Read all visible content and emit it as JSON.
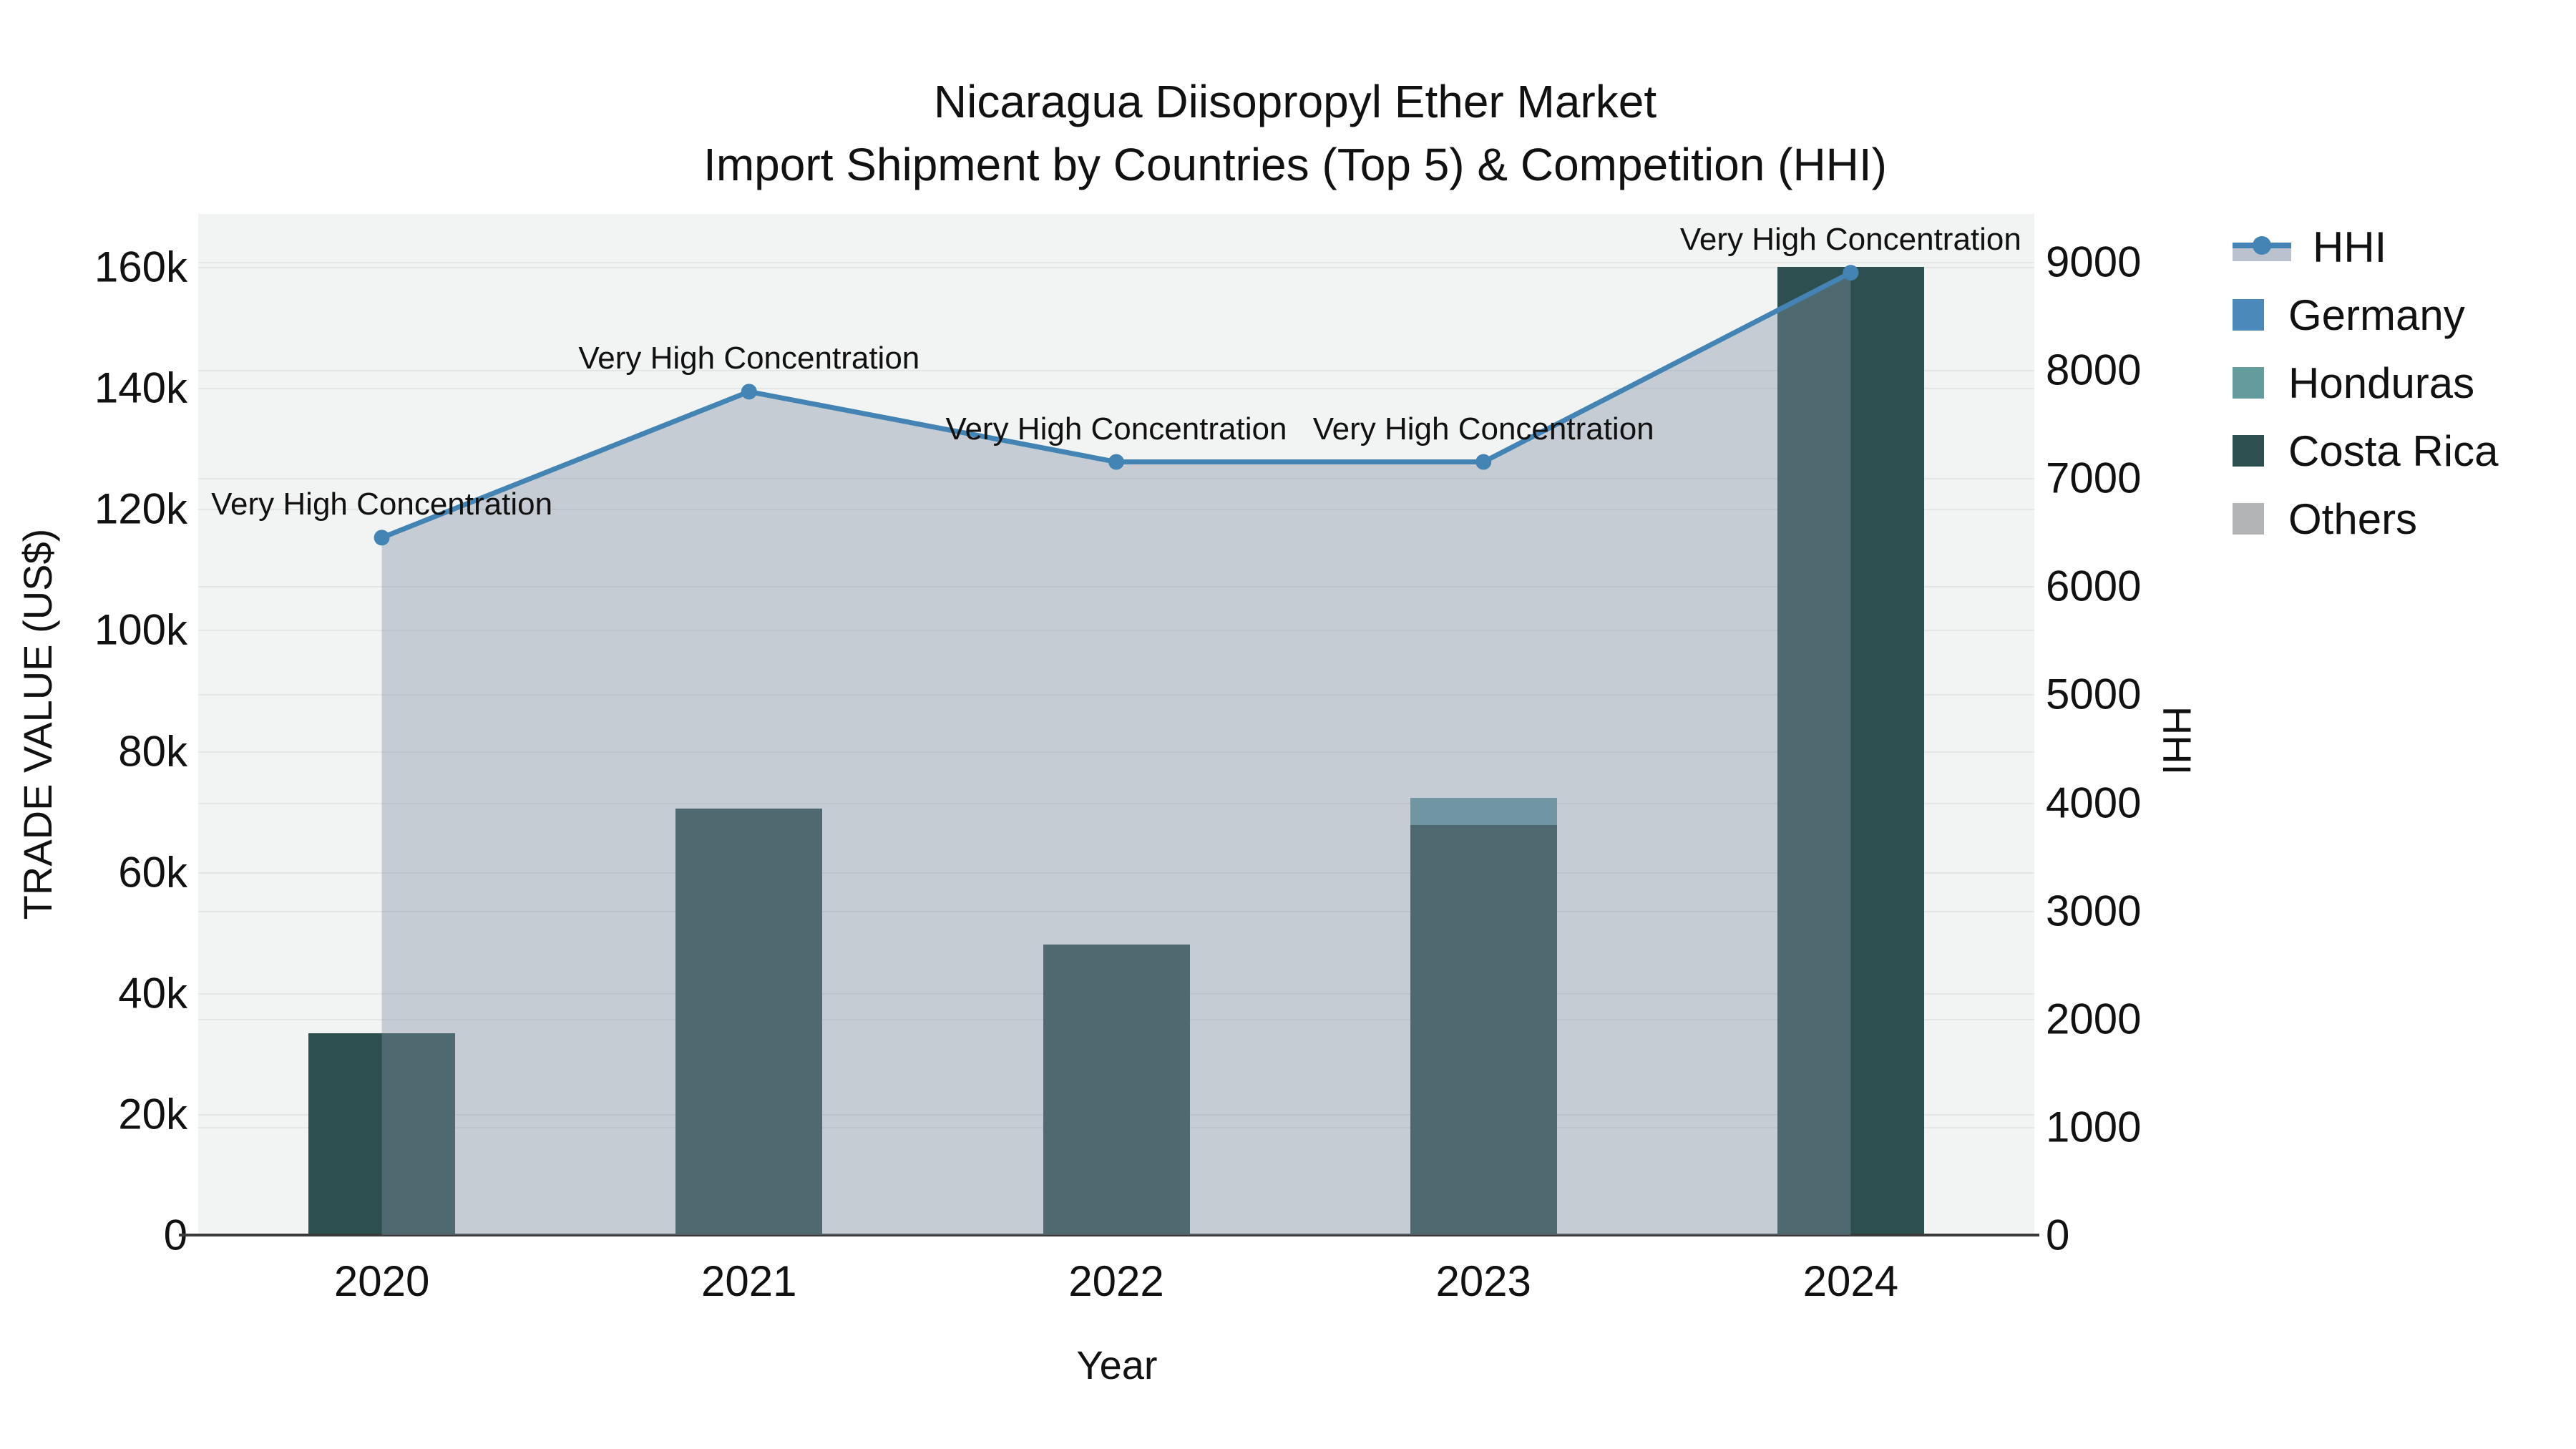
{
  "title": {
    "line1": "Nicaragua Diisopropyl Ether Market",
    "line2": "Import Shipment by Countries (Top 5) & Competition (HHI)"
  },
  "colors": {
    "background": "#ffffff",
    "plot_background": "#f2f3f3",
    "gridline": "#e3e5e6",
    "axis_line": "#3a3a3a",
    "hhi_line": "#4484b4",
    "hhi_fill": "rgba(130,144,164,0.40)",
    "germany": "#4a89ba",
    "honduras": "#649c9e",
    "costa_rica": "#2e4f4f",
    "others": "#b2b4b6"
  },
  "legend": {
    "items": [
      {
        "label": "HHI",
        "type": "line"
      },
      {
        "label": "Germany",
        "type": "square",
        "color": "#4a89ba"
      },
      {
        "label": "Honduras",
        "type": "square",
        "color": "#649c9e"
      },
      {
        "label": "Costa Rica",
        "type": "square",
        "color": "#2e4f4f"
      },
      {
        "label": "Others",
        "type": "square",
        "color": "#b2b4b6"
      }
    ]
  },
  "chart_data": {
    "type": [
      "bar",
      "line"
    ],
    "title": "Nicaragua Diisopropyl Ether Market — Import Shipment by Countries (Top 5) & Competition (HHI)",
    "categories": [
      "2020",
      "2021",
      "2022",
      "2023",
      "2024"
    ],
    "xlabel": "Year",
    "ylabel_left": "TRADE VALUE (US$)",
    "ylabel_right": "HHI",
    "ylim_left": [
      0,
      168800
    ],
    "ylim_right": [
      0,
      9440
    ],
    "grid": true,
    "legend_position": "right",
    "stack_order": [
      "Costa Rica",
      "Honduras",
      "Germany",
      "Others"
    ],
    "series": [
      {
        "name": "Germany",
        "type": "bar",
        "axis": "left",
        "color": "#4a89ba",
        "values": [
          0,
          0,
          0,
          0,
          0
        ]
      },
      {
        "name": "Honduras",
        "type": "bar",
        "axis": "left",
        "color": "#649c9e",
        "values": [
          0,
          0,
          0,
          4500,
          0
        ]
      },
      {
        "name": "Costa Rica",
        "type": "bar",
        "axis": "left",
        "color": "#2e4f4f",
        "values": [
          33400,
          70500,
          48000,
          67800,
          160000
        ]
      },
      {
        "name": "Others",
        "type": "bar",
        "axis": "left",
        "color": "#b2b4b6",
        "values": [
          0,
          0,
          0,
          0,
          0
        ]
      },
      {
        "name": "HHI",
        "type": "line",
        "axis": "right",
        "color": "#4484b4",
        "fill_color": "rgba(130,144,164,0.40)",
        "values": [
          6450,
          7800,
          7150,
          7150,
          8900
        ]
      }
    ],
    "annotations": [
      {
        "x": "2020",
        "text": "Very High Concentration"
      },
      {
        "x": "2021",
        "text": "Very High Concentration"
      },
      {
        "x": "2022",
        "text": "Very High Concentration"
      },
      {
        "x": "2023",
        "text": "Very High Concentration"
      },
      {
        "x": "2024",
        "text": "Very High Concentration"
      }
    ],
    "y_left_ticks": [
      {
        "v": 0,
        "label": "0"
      },
      {
        "v": 20000,
        "label": "20k"
      },
      {
        "v": 40000,
        "label": "40k"
      },
      {
        "v": 60000,
        "label": "60k"
      },
      {
        "v": 80000,
        "label": "80k"
      },
      {
        "v": 100000,
        "label": "100k"
      },
      {
        "v": 120000,
        "label": "120k"
      },
      {
        "v": 140000,
        "label": "140k"
      },
      {
        "v": 160000,
        "label": "160k"
      }
    ],
    "y_right_ticks": [
      {
        "v": 0,
        "label": "0"
      },
      {
        "v": 1000,
        "label": "1000"
      },
      {
        "v": 2000,
        "label": "2000"
      },
      {
        "v": 3000,
        "label": "3000"
      },
      {
        "v": 4000,
        "label": "4000"
      },
      {
        "v": 5000,
        "label": "5000"
      },
      {
        "v": 6000,
        "label": "6000"
      },
      {
        "v": 7000,
        "label": "7000"
      },
      {
        "v": 8000,
        "label": "8000"
      },
      {
        "v": 9000,
        "label": "9000"
      }
    ]
  }
}
